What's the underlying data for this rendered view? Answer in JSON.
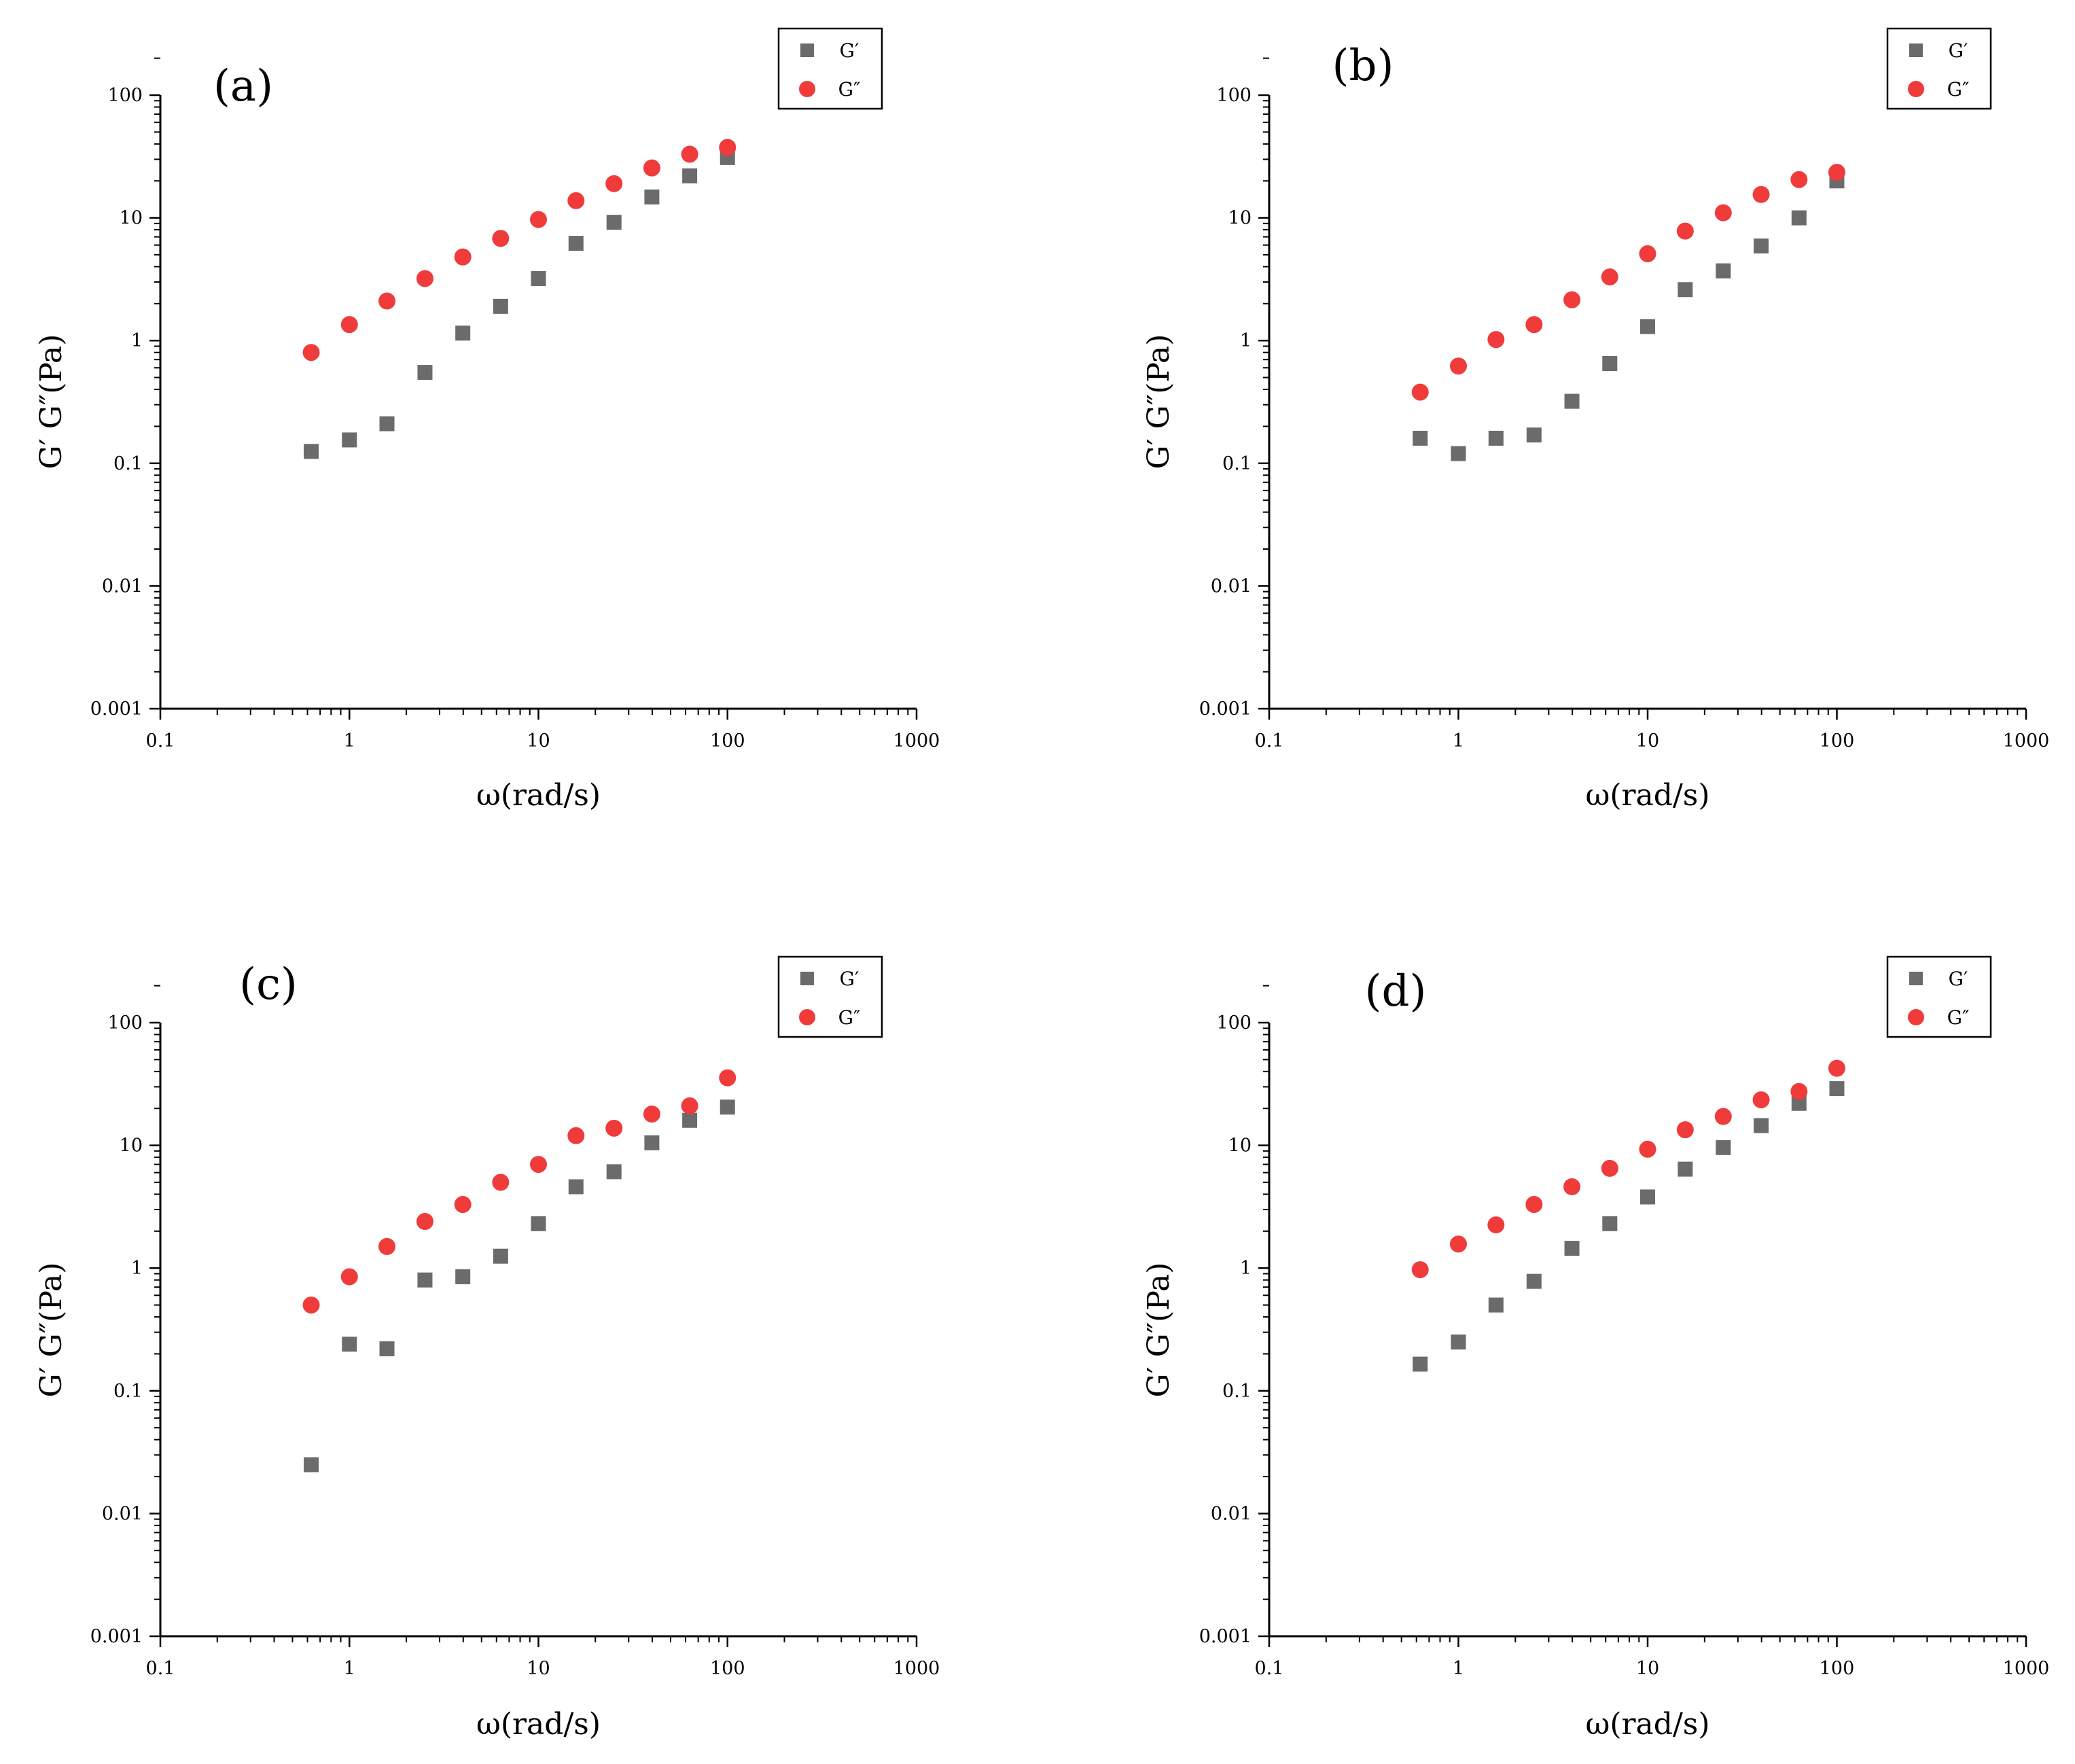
{
  "figure": {
    "x_tick_labels": [
      "0.1",
      "1",
      "10",
      "100",
      "1000"
    ],
    "y_tick_labels": [
      "0.001",
      "0.01",
      "0.1",
      "1",
      "10",
      "100"
    ],
    "xlabel": "ω(rad/s)",
    "ylabel": "G′ G″(Pa)",
    "legend": {
      "g1_label": "G′",
      "g2_label": "G″"
    },
    "colors": {
      "g1": "#6b6b6b",
      "g2": "#f03b3b",
      "axis": "#000000"
    }
  },
  "chart_data": [
    {
      "panel": "(a)",
      "type": "scatter",
      "xscale": "log",
      "yscale": "log",
      "xlim": [
        0.1,
        1000
      ],
      "ylim": [
        0.001,
        100
      ],
      "xlabel": "ω(rad/s)",
      "ylabel": "G′ G″(Pa)",
      "legend_position": "top-right",
      "x": [
        0.628,
        1,
        1.58,
        2.51,
        3.98,
        6.31,
        10,
        15.8,
        25.1,
        39.8,
        63.1,
        100
      ],
      "series": [
        {
          "name": "G′",
          "marker": "square",
          "color": "#6b6b6b",
          "values": [
            0.125,
            0.155,
            0.21,
            0.55,
            1.15,
            1.9,
            3.2,
            6.2,
            9.2,
            14.8,
            22,
            31
          ]
        },
        {
          "name": "G″",
          "marker": "circle",
          "color": "#f03b3b",
          "values": [
            0.8,
            1.35,
            2.1,
            3.2,
            4.8,
            6.8,
            9.7,
            13.8,
            19,
            25.5,
            33,
            37.5
          ]
        }
      ]
    },
    {
      "panel": "(b)",
      "type": "scatter",
      "xscale": "log",
      "yscale": "log",
      "xlim": [
        0.1,
        1000
      ],
      "ylim": [
        0.001,
        100
      ],
      "xlabel": "ω(rad/s)",
      "ylabel": "G′ G″(Pa)",
      "legend_position": "top-right",
      "x": [
        0.628,
        1,
        1.58,
        2.51,
        3.98,
        6.31,
        10,
        15.8,
        25.1,
        39.8,
        63.1,
        100
      ],
      "series": [
        {
          "name": "G′",
          "marker": "square",
          "color": "#6b6b6b",
          "values": [
            0.16,
            0.12,
            0.16,
            0.17,
            0.32,
            0.65,
            1.3,
            2.6,
            3.7,
            5.9,
            10,
            20
          ]
        },
        {
          "name": "G″",
          "marker": "circle",
          "color": "#f03b3b",
          "values": [
            0.38,
            0.62,
            1.02,
            1.35,
            2.15,
            3.3,
            5.1,
            7.8,
            11,
            15.5,
            20.5,
            23.5
          ]
        }
      ]
    },
    {
      "panel": "(c)",
      "type": "scatter",
      "xscale": "log",
      "yscale": "log",
      "xlim": [
        0.1,
        1000
      ],
      "ylim": [
        0.001,
        100
      ],
      "xlabel": "ω(rad/s)",
      "ylabel": "G′ G″(Pa)",
      "legend_position": "top-right",
      "x": [
        0.628,
        1,
        1.58,
        2.51,
        3.98,
        6.31,
        10,
        15.8,
        25.1,
        39.8,
        63.1,
        100
      ],
      "series": [
        {
          "name": "G′",
          "marker": "square",
          "color": "#6b6b6b",
          "values": [
            0.025,
            0.24,
            0.22,
            0.8,
            0.85,
            1.25,
            2.3,
            4.6,
            6.1,
            10.5,
            16,
            20.5
          ]
        },
        {
          "name": "G″",
          "marker": "circle",
          "color": "#f03b3b",
          "values": [
            0.5,
            0.85,
            1.5,
            2.4,
            3.3,
            5,
            7,
            12,
            13.8,
            18,
            21,
            35.5
          ]
        }
      ]
    },
    {
      "panel": "(d)",
      "type": "scatter",
      "xscale": "log",
      "yscale": "log",
      "xlim": [
        0.1,
        1000
      ],
      "ylim": [
        0.001,
        100
      ],
      "xlabel": "ω(rad/s)",
      "ylabel": "G′ G″(Pa)",
      "legend_position": "top-right",
      "x": [
        0.628,
        1,
        1.58,
        2.51,
        3.98,
        6.31,
        10,
        15.8,
        25.1,
        39.8,
        63.1,
        100
      ],
      "series": [
        {
          "name": "G′",
          "marker": "square",
          "color": "#6b6b6b",
          "values": [
            0.165,
            0.25,
            0.5,
            0.78,
            1.45,
            2.3,
            3.8,
            6.4,
            9.6,
            14.5,
            22,
            29
          ]
        },
        {
          "name": "G″",
          "marker": "circle",
          "color": "#f03b3b",
          "values": [
            0.97,
            1.57,
            2.25,
            3.3,
            4.6,
            6.5,
            9.3,
            13.4,
            17.2,
            23.5,
            27.5,
            42.5
          ]
        }
      ]
    }
  ]
}
